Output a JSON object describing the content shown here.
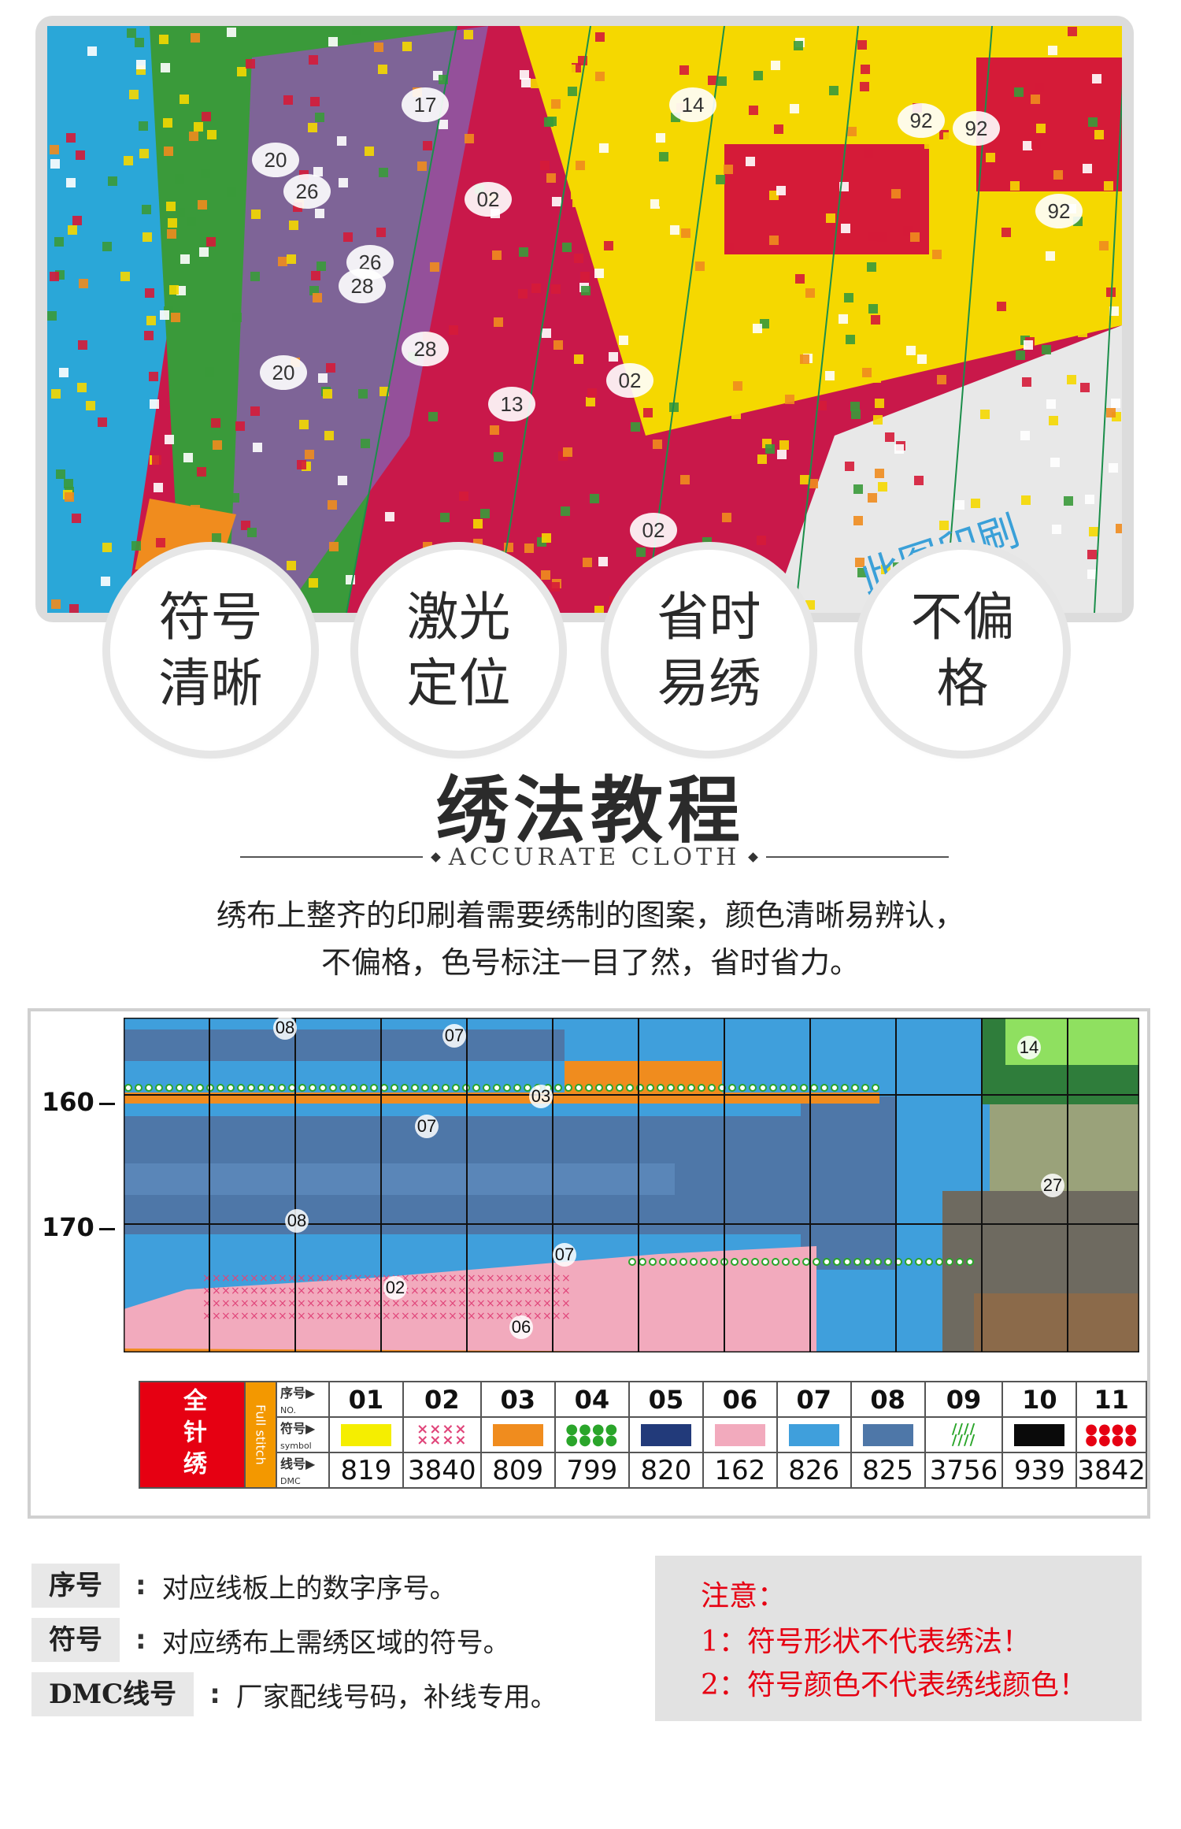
{
  "features": [
    {
      "text": "符号清晰"
    },
    {
      "text": "激光定位"
    },
    {
      "text": "省时易绣"
    },
    {
      "text": "不偏格"
    }
  ],
  "photo": {
    "numbers": [
      "14",
      "92",
      "02",
      "02",
      "92",
      "92",
      "02",
      "17",
      "26",
      "20",
      "28",
      "28",
      "13",
      "20",
      "26"
    ],
    "printed_text": "此图印刷"
  },
  "title": "绣法教程",
  "subtitle": "ACCURATE CLOTH",
  "description": {
    "line1": "绣布上整齐的印刷着需要绣制的图案，颜色清晰易辨认，",
    "line2": "不偏格，色号标注一目了然，省时省力。"
  },
  "pattern": {
    "row_labels": [
      "160",
      "170"
    ],
    "labels": [
      "08",
      "07",
      "03",
      "07",
      "08",
      "07",
      "02",
      "06",
      "14",
      "27"
    ]
  },
  "legend": {
    "side_title": "全针绣",
    "side_sub": "Full stitch",
    "row_headers": {
      "no": "序号▶",
      "no_en": "NO.",
      "symbol": "符号▶",
      "symbol_en": "symbol",
      "dmc": "线号▶",
      "dmc_en": "DMC"
    },
    "items": [
      {
        "no": "01",
        "symbol": "",
        "color": "#f5ee00",
        "dmc": "819"
      },
      {
        "no": "02",
        "symbol": "××××\n××××",
        "color": "#ffffff",
        "dmc": "3840"
      },
      {
        "no": "03",
        "symbol": "",
        "color": "#f08c1e",
        "dmc": "809"
      },
      {
        "no": "04",
        "symbol": "●●●●\n●●●●",
        "color": "#ffffff",
        "dmc": "799"
      },
      {
        "no": "05",
        "symbol": "",
        "color": "#223a7a",
        "dmc": "820"
      },
      {
        "no": "06",
        "symbol": "",
        "color": "#f2aabd",
        "dmc": "162"
      },
      {
        "no": "07",
        "symbol": "",
        "color": "#3f9fdc",
        "dmc": "826"
      },
      {
        "no": "08",
        "symbol": "",
        "color": "#4e77a8",
        "dmc": "825"
      },
      {
        "no": "09",
        "symbol": "////\n////",
        "color": "#ffffff",
        "dmc": "3756"
      },
      {
        "no": "10",
        "symbol": "",
        "color": "#0a0a0a",
        "dmc": "939"
      },
      {
        "no": "11",
        "symbol": "●●●●\n●●●●",
        "color": "#ffffff",
        "dmc": "3842"
      }
    ]
  },
  "definitions": [
    {
      "key": "序号",
      "value": "对应线板上的数字序号。"
    },
    {
      "key": "符号",
      "value": "对应绣布上需绣区域的符号。"
    },
    {
      "key": "DMC线号",
      "value": "厂家配线号码，补线专用。"
    }
  ],
  "notes": {
    "heading": "注意：",
    "items": [
      "1：符号形状不代表绣法！",
      "2：符号颜色不代表绣线颜色！"
    ]
  },
  "colors": {
    "red": "#e60012",
    "orange": "#f39800",
    "sym_green": "#2aa52a",
    "sym_red": "#e60012",
    "sym_pink": "#e0457a"
  }
}
